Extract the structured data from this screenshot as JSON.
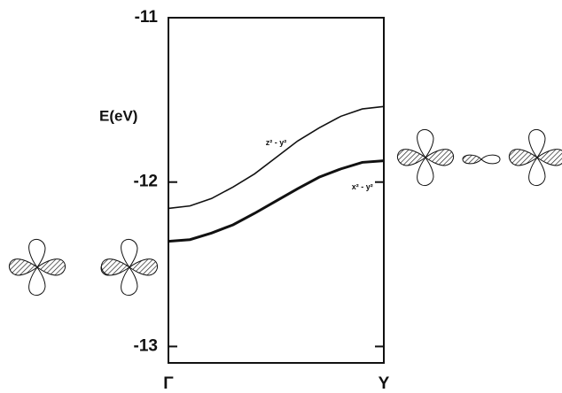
{
  "chart_data": {
    "type": "line",
    "y_label": "E(eV)",
    "x": [
      0,
      0.1,
      0.2,
      0.3,
      0.4,
      0.5,
      0.6,
      0.7,
      0.8,
      0.9,
      1
    ],
    "xlim": [
      0,
      1
    ],
    "xticks": [
      {
        "value": 0,
        "label": "Γ"
      },
      {
        "value": 1,
        "label": "Y"
      }
    ],
    "ylim": [
      -13.1,
      -11
    ],
    "yticks": [
      -13,
      -12,
      -11
    ],
    "series": [
      {
        "name": "z² - y²",
        "color": "#111111",
        "values": [
          -12.16,
          -12.145,
          -12.1,
          -12.03,
          -11.95,
          -11.85,
          -11.75,
          -11.67,
          -11.6,
          -11.555,
          -11.54
        ]
      },
      {
        "name": "x² - y²",
        "color": "#111111",
        "values": [
          -12.36,
          -12.35,
          -12.31,
          -12.26,
          -12.19,
          -12.115,
          -12.04,
          -11.97,
          -11.92,
          -11.88,
          -11.87
        ]
      }
    ]
  }
}
